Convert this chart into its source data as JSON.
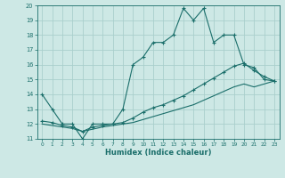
{
  "xlabel": "Humidex (Indice chaleur)",
  "ylabel": "",
  "bg_color": "#cde8e5",
  "grid_color": "#aacfcc",
  "line_color": "#1a6e6a",
  "xlim": [
    -0.5,
    23.5
  ],
  "ylim": [
    11,
    20
  ],
  "xticks": [
    0,
    1,
    2,
    3,
    4,
    5,
    6,
    7,
    8,
    9,
    10,
    11,
    12,
    13,
    14,
    15,
    16,
    17,
    18,
    19,
    20,
    21,
    22,
    23
  ],
  "yticks": [
    11,
    12,
    13,
    14,
    15,
    16,
    17,
    18,
    19,
    20
  ],
  "line1_x": [
    0,
    1,
    2,
    3,
    4,
    5,
    6,
    7,
    8,
    9,
    10,
    11,
    12,
    13,
    14,
    15,
    16,
    17,
    18,
    19,
    20,
    21,
    22,
    23
  ],
  "line1_y": [
    14,
    13,
    12,
    12,
    11,
    12,
    12,
    12,
    13,
    16,
    16.5,
    17.5,
    17.5,
    18,
    19.8,
    19.0,
    19.8,
    17.5,
    18,
    18.0,
    16.0,
    15.8,
    15.0,
    14.9
  ],
  "line2_x": [
    0,
    1,
    2,
    3,
    4,
    5,
    6,
    7,
    8,
    9,
    10,
    11,
    12,
    13,
    14,
    15,
    16,
    17,
    18,
    19,
    20,
    21,
    22,
    23
  ],
  "line2_y": [
    12.2,
    12.1,
    11.9,
    11.8,
    11.5,
    11.8,
    11.9,
    12.0,
    12.1,
    12.4,
    12.8,
    13.1,
    13.3,
    13.6,
    13.9,
    14.3,
    14.7,
    15.1,
    15.5,
    15.9,
    16.1,
    15.6,
    15.2,
    14.9
  ],
  "line3_x": [
    0,
    1,
    2,
    3,
    4,
    5,
    6,
    7,
    8,
    9,
    10,
    11,
    12,
    13,
    14,
    15,
    16,
    17,
    18,
    19,
    20,
    21,
    22,
    23
  ],
  "line3_y": [
    12.0,
    11.9,
    11.8,
    11.7,
    11.5,
    11.65,
    11.8,
    11.9,
    12.0,
    12.1,
    12.3,
    12.5,
    12.7,
    12.9,
    13.1,
    13.3,
    13.6,
    13.9,
    14.2,
    14.5,
    14.7,
    14.5,
    14.7,
    14.9
  ]
}
